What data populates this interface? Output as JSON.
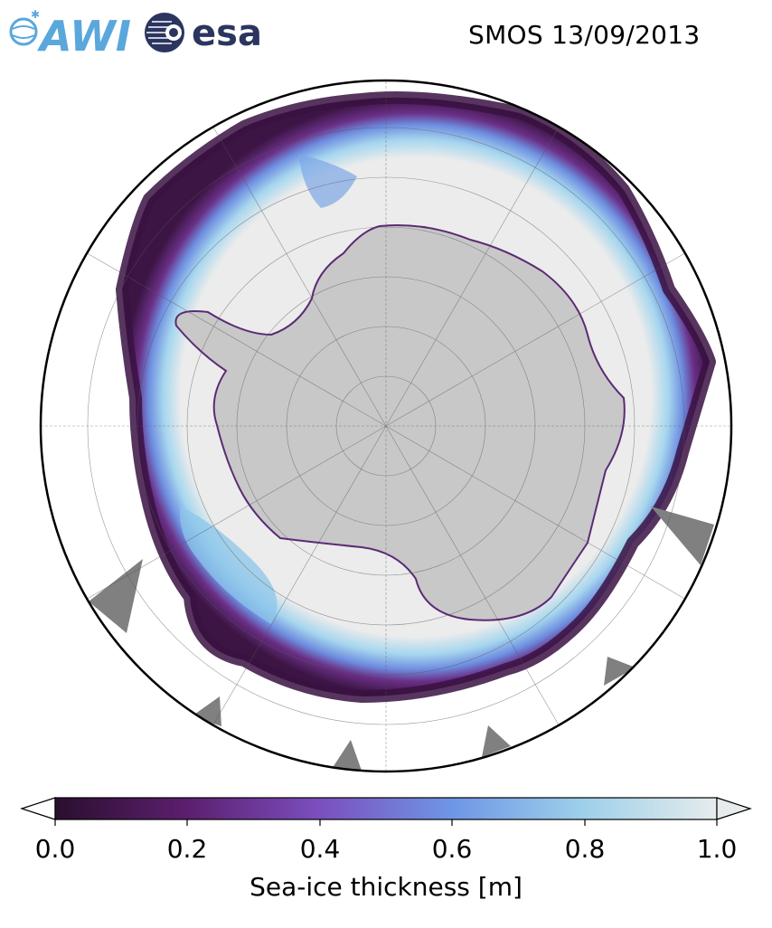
{
  "header": {
    "logo_awi": "AWI",
    "logo_esa": "esa",
    "title": "SMOS 13/09/2013"
  },
  "map": {
    "projection": "south-polar-stereographic",
    "land_color": "#c8c8c8",
    "thick_ice_color": "#ececec",
    "ocean_color": "#ffffff",
    "missing_data_color": "#808080"
  },
  "colorbar": {
    "label": "Sea-ice thickness [m]",
    "range": [
      0.0,
      1.0
    ],
    "ticks": [
      "0.0",
      "0.2",
      "0.4",
      "0.6",
      "0.8",
      "1.0"
    ],
    "extend": "both",
    "colors": [
      "#2a0f2e",
      "#5c1f6e",
      "#7b4fbe",
      "#6e96e6",
      "#9fd0ea",
      "#e6ecec"
    ]
  }
}
